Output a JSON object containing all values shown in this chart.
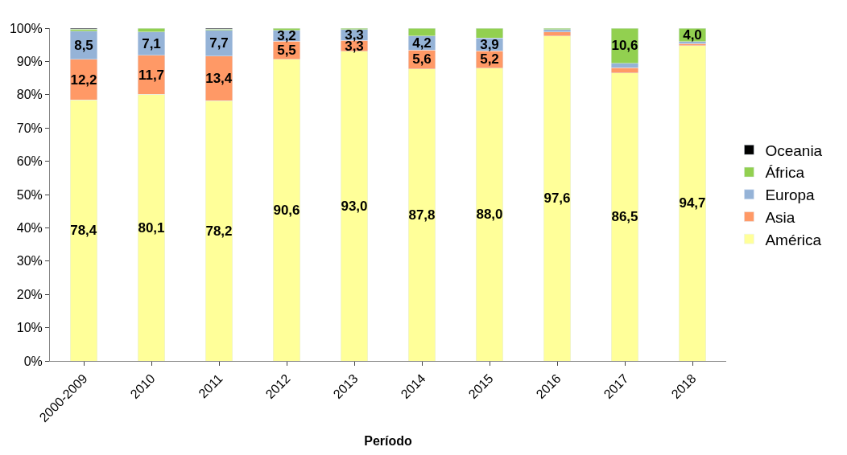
{
  "chart_data": {
    "type": "bar",
    "stacked": true,
    "xlabel": "Período",
    "categories": [
      "2000-2009",
      "2010",
      "2011",
      "2012",
      "2013",
      "2014",
      "2015",
      "2016",
      "2017",
      "2018"
    ],
    "series": [
      {
        "name": "América",
        "color": "#ffff99",
        "values": [
          78.4,
          80.1,
          78.2,
          90.6,
          93.0,
          87.8,
          88.0,
          97.6,
          86.5,
          94.7
        ],
        "value_labels": [
          "78,4",
          "80,1",
          "78,2",
          "90,6",
          "93,0",
          "87,8",
          "88,0",
          "97,6",
          "86,5",
          "94,7"
        ]
      },
      {
        "name": "Asia",
        "color": "#ff9966",
        "values": [
          12.2,
          11.7,
          13.4,
          5.5,
          3.3,
          5.6,
          5.2,
          1.3,
          1.6,
          0.7
        ],
        "value_labels": [
          "12,2",
          "11,7",
          "13,4",
          "5,5",
          "3,3",
          "5,6",
          "5,2",
          null,
          null,
          null
        ]
      },
      {
        "name": "Europa",
        "color": "#95b3d7",
        "values": [
          8.5,
          7.1,
          7.7,
          3.2,
          3.3,
          4.2,
          3.9,
          0.7,
          1.3,
          0.6
        ],
        "value_labels": [
          "8,5",
          "7,1",
          "7,7",
          "3,2",
          "3,3",
          "4,2",
          "3,9",
          null,
          null,
          null
        ]
      },
      {
        "name": "África",
        "color": "#92d050",
        "values": [
          0.6,
          1.0,
          0.4,
          0.7,
          0.4,
          2.4,
          2.9,
          0.4,
          10.6,
          4.0
        ],
        "value_labels": [
          null,
          null,
          null,
          null,
          null,
          null,
          null,
          null,
          "10,6",
          "4,0"
        ]
      },
      {
        "name": "Oceania",
        "color": "#000000",
        "values": [
          0.3,
          null,
          0.3,
          null,
          null,
          null,
          null,
          null,
          null,
          null
        ]
      }
    ],
    "ylim": [
      0,
      100
    ],
    "yticks": [
      {
        "value": 0,
        "label": "0%"
      },
      {
        "value": 10,
        "label": "10%"
      },
      {
        "value": 20,
        "label": "20%"
      },
      {
        "value": 30,
        "label": "30%"
      },
      {
        "value": 40,
        "label": "40%"
      },
      {
        "value": 50,
        "label": "50%"
      },
      {
        "value": 60,
        "label": "60%"
      },
      {
        "value": 70,
        "label": "70%"
      },
      {
        "value": 80,
        "label": "80%"
      },
      {
        "value": 90,
        "label": "90%"
      },
      {
        "value": 100,
        "label": "100%"
      }
    ],
    "legend": "right"
  }
}
